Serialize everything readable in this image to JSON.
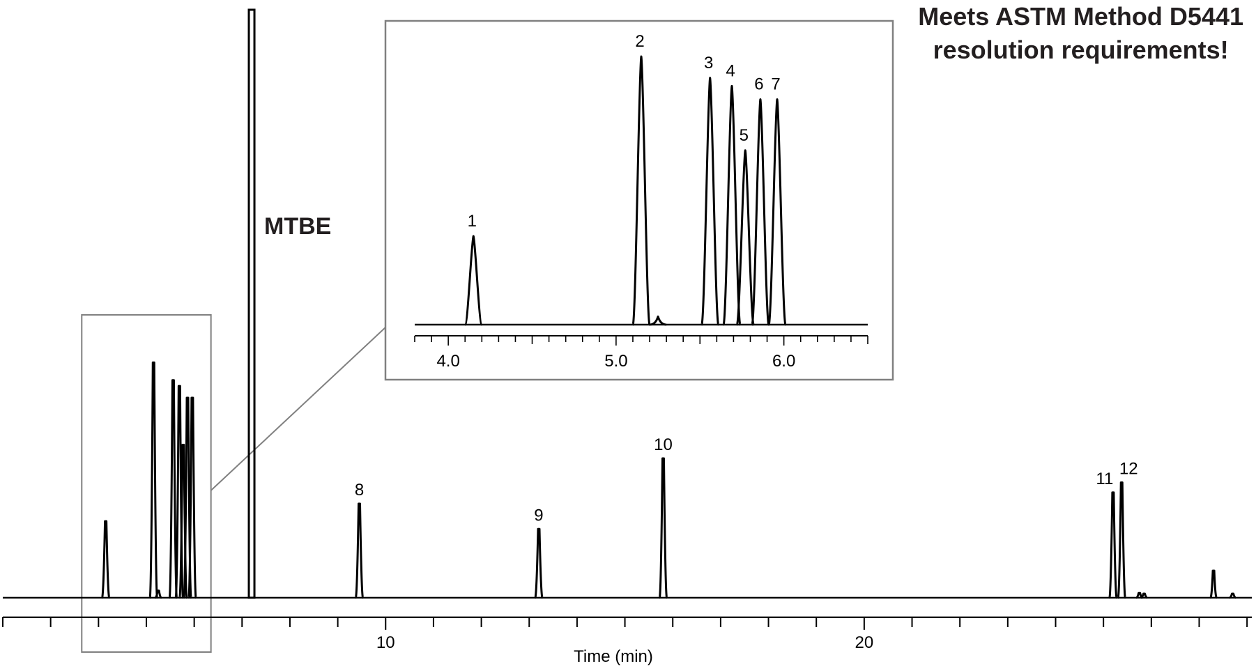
{
  "annotation": {
    "line1": "Meets ASTM Method D5441",
    "line2": "resolution requirements!"
  },
  "colors": {
    "trace": "#000000",
    "box": "#808080",
    "text": "#231f20"
  },
  "chart_data": [
    {
      "type": "line",
      "panel": "main",
      "xlabel": "Time (min)",
      "ylabel": "",
      "xlim": [
        2.0,
        28.1
      ],
      "x_ticks": [
        10,
        20
      ],
      "x_tick_labels": [
        "10",
        "20"
      ],
      "peaks": [
        {
          "label": "",
          "x": 4.15,
          "height": 0.13
        },
        {
          "label": "",
          "x": 5.15,
          "height": 0.4
        },
        {
          "label": "",
          "x": 5.25,
          "height": 0.012
        },
        {
          "label": "",
          "x": 5.56,
          "height": 0.37
        },
        {
          "label": "",
          "x": 5.69,
          "height": 0.36
        },
        {
          "label": "",
          "x": 5.77,
          "height": 0.26
        },
        {
          "label": "",
          "x": 5.86,
          "height": 0.34
        },
        {
          "label": "",
          "x": 5.96,
          "height": 0.34
        },
        {
          "label": "MTBE",
          "x": 7.2,
          "height": 1.0
        },
        {
          "label": "8",
          "x": 9.45,
          "height": 0.16
        },
        {
          "label": "9",
          "x": 13.2,
          "height": 0.117
        },
        {
          "label": "10",
          "x": 15.8,
          "height": 0.237
        },
        {
          "label": "11",
          "x": 25.2,
          "height": 0.179
        },
        {
          "label": "12",
          "x": 25.38,
          "height": 0.196
        },
        {
          "label": "",
          "x": 25.75,
          "height": 0.008
        },
        {
          "label": "",
          "x": 25.85,
          "height": 0.007
        },
        {
          "label": "",
          "x": 27.3,
          "height": 0.046
        },
        {
          "label": "",
          "x": 27.7,
          "height": 0.007
        }
      ]
    },
    {
      "type": "line",
      "panel": "inset",
      "xlabel": "",
      "ylabel": "",
      "xlim": [
        3.8,
        6.5
      ],
      "x_ticks": [
        4.0,
        5.0,
        6.0
      ],
      "x_tick_labels": [
        "4.0",
        "5.0",
        "6.0"
      ],
      "peaks": [
        {
          "label": "1",
          "x": 4.15,
          "height": 0.33
        },
        {
          "label": "2",
          "x": 5.15,
          "height": 1.0
        },
        {
          "label": "",
          "x": 5.25,
          "height": 0.03
        },
        {
          "label": "3",
          "x": 5.56,
          "height": 0.92
        },
        {
          "label": "4",
          "x": 5.69,
          "height": 0.89
        },
        {
          "label": "5",
          "x": 5.77,
          "height": 0.65
        },
        {
          "label": "6",
          "x": 5.86,
          "height": 0.84
        },
        {
          "label": "7",
          "x": 5.96,
          "height": 0.84
        }
      ]
    }
  ]
}
